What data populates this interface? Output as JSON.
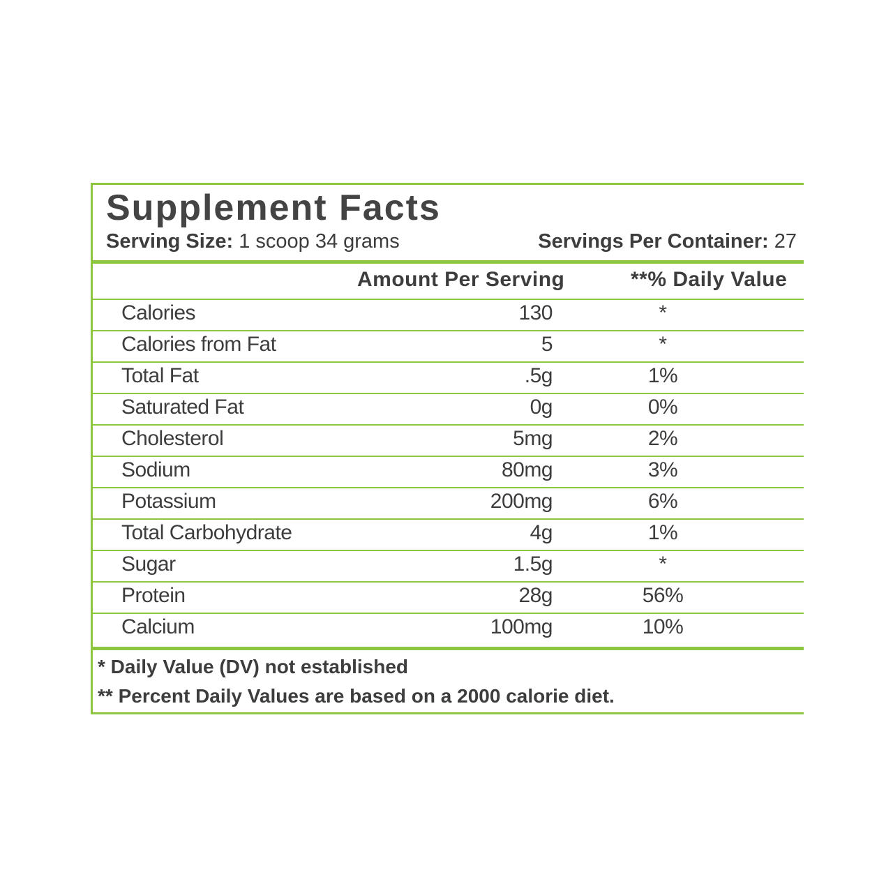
{
  "title": "Supplement Facts",
  "serving_size": {
    "label": "Serving Size:",
    "value": "1 scoop 34 grams"
  },
  "servings_per_container": {
    "label": "Servings Per Container:",
    "value": "27"
  },
  "table": {
    "headers": [
      "Amount Per Serving",
      "**% Daily Value"
    ],
    "rows": [
      [
        "Calories",
        "130",
        "*"
      ],
      [
        "Calories from Fat",
        "5",
        "*"
      ],
      [
        "Total Fat",
        ".5g",
        "1%"
      ],
      [
        "Saturated Fat",
        "0g",
        "0%"
      ],
      [
        "Cholesterol",
        "5mg",
        "2%"
      ],
      [
        "Sodium",
        "80mg",
        "3%"
      ],
      [
        "Potassium",
        "200mg",
        "6%"
      ],
      [
        "Total Carbohydrate",
        "4g",
        "1%"
      ],
      [
        "Sugar",
        "1.5g",
        "*"
      ],
      [
        "Protein",
        "28g",
        "56%"
      ],
      [
        "Calcium",
        "100mg",
        "10%"
      ]
    ]
  },
  "footnotes": [
    "* Daily Value (DV) not established",
    "** Percent Daily Values are based on a 2000 calorie diet."
  ]
}
